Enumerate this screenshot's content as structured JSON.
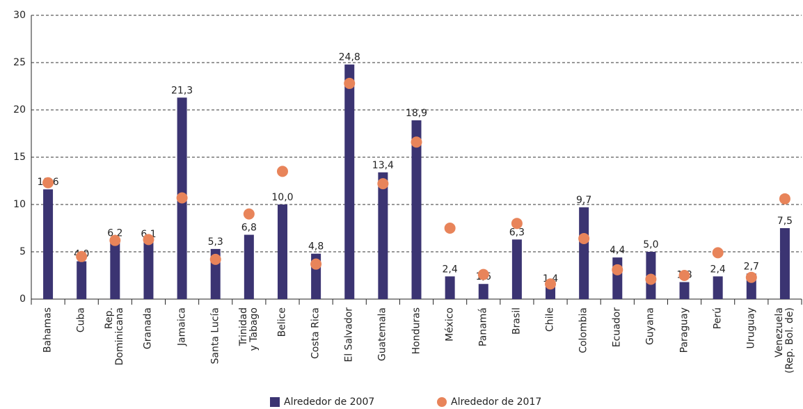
{
  "chart_data": {
    "type": "bar",
    "categories": [
      "Bahamas",
      "Cuba",
      "Rep.\nDominicana",
      "Granada",
      "Jamaica",
      "Santa Lucía",
      "Trinidad\ny Tabago",
      "Belice",
      "Costa Rica",
      "El Salvador",
      "Guatemala",
      "Honduras",
      "México",
      "Panamá",
      "Brasil",
      "Chile",
      "Colombia",
      "Ecuador",
      "Guyana",
      "Paraguay",
      "Perú",
      "Uruguay",
      "Venezuela\n(Rep. Bol. de)"
    ],
    "series": [
      {
        "name": "Alrededor de 2007",
        "type": "bar",
        "color": "#3b3472",
        "values": [
          11.6,
          4.0,
          6.2,
          6.1,
          21.3,
          5.3,
          6.8,
          10.0,
          4.8,
          24.8,
          13.4,
          18.9,
          2.4,
          1.6,
          6.3,
          1.4,
          9.7,
          4.4,
          5.0,
          1.8,
          2.4,
          2.7,
          7.5
        ],
        "value_labels": [
          "11,6",
          "4,0",
          "6,2",
          "6,1",
          "21,3",
          "5,3",
          "6,8",
          "10,0",
          "4,8",
          "24,8",
          "13,4",
          "18,9",
          "2,4",
          "1,6",
          "6,3",
          "1,4",
          "9,7",
          "4,4",
          "5,0",
          "1,8",
          "2,4",
          "2,7",
          "7,5"
        ]
      },
      {
        "name": "Alrededor de 2017",
        "type": "scatter",
        "color": "#e8845a",
        "values": [
          12.3,
          4.5,
          6.2,
          6.3,
          10.7,
          4.2,
          9.0,
          13.5,
          3.7,
          22.8,
          12.2,
          16.6,
          7.5,
          2.6,
          8.0,
          1.6,
          6.4,
          3.1,
          2.1,
          2.5,
          4.9,
          2.3,
          10.6
        ]
      }
    ],
    "ylim": [
      0,
      30
    ],
    "yticks": [
      0,
      5,
      10,
      15,
      20,
      25,
      30
    ],
    "grid": true
  }
}
